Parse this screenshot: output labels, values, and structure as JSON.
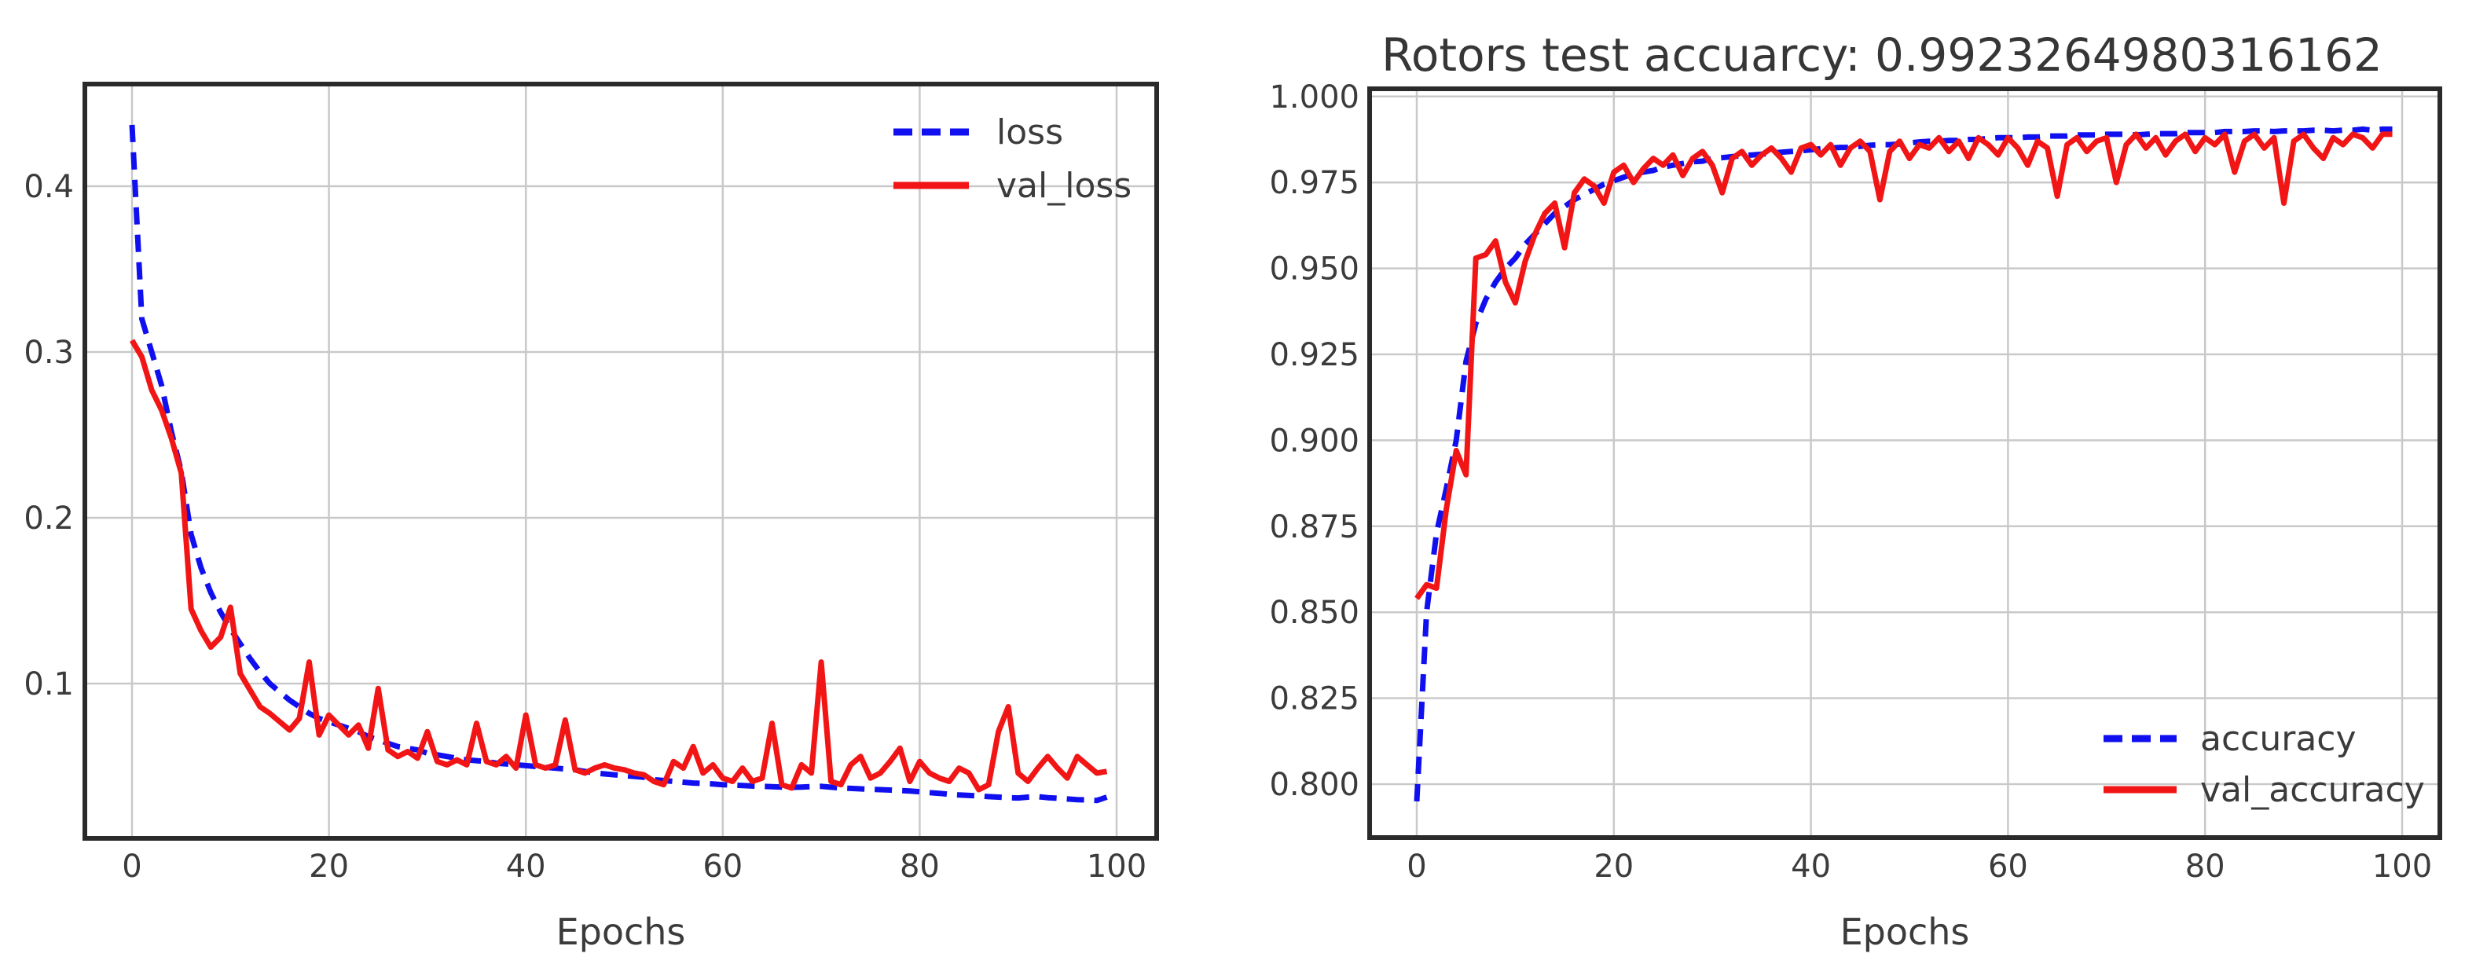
{
  "page": {
    "background": "#ffffff",
    "text_color": "#3b3b3b",
    "grid_color": "#c9c9c9",
    "frame_color": "#2a2a2a"
  },
  "chart_data": [
    {
      "id": "loss",
      "type": "line",
      "title": "",
      "xlabel": "Epochs",
      "ylabel": "",
      "grid": true,
      "legend_position": "upper right",
      "x_start": 0,
      "x_step": 1,
      "xlim": [
        -4.8,
        104.1
      ],
      "ylim": [
        0.007,
        0.462
      ],
      "x_ticks": [
        {
          "v": 0,
          "label": "0"
        },
        {
          "v": 20,
          "label": "20"
        },
        {
          "v": 40,
          "label": "40"
        },
        {
          "v": 60,
          "label": "60"
        },
        {
          "v": 80,
          "label": "80"
        },
        {
          "v": 100,
          "label": "100"
        }
      ],
      "y_ticks": [
        {
          "v": 0.4,
          "label": "0.4"
        },
        {
          "v": 0.3,
          "label": "0.3"
        },
        {
          "v": 0.2,
          "label": "0.2"
        },
        {
          "v": 0.1,
          "label": "0.1"
        }
      ],
      "series": [
        {
          "name": "loss",
          "color": "#0f0fef",
          "style": "dashed",
          "values": [
            0.437,
            0.32,
            0.3,
            0.28,
            0.252,
            0.228,
            0.19,
            0.17,
            0.155,
            0.143,
            0.133,
            0.124,
            0.115,
            0.107,
            0.1,
            0.095,
            0.09,
            0.086,
            0.082,
            0.079,
            0.077,
            0.075,
            0.073,
            0.071,
            0.068,
            0.066,
            0.064,
            0.062,
            0.061,
            0.06,
            0.058,
            0.057,
            0.056,
            0.055,
            0.054,
            0.0535,
            0.053,
            0.052,
            0.0515,
            0.051,
            0.0505,
            0.05,
            0.0495,
            0.049,
            0.0485,
            0.048,
            0.047,
            0.046,
            0.0455,
            0.045,
            0.0445,
            0.044,
            0.0435,
            0.042,
            0.0415,
            0.041,
            0.0405,
            0.04,
            0.0398,
            0.0395,
            0.039,
            0.0388,
            0.0385,
            0.0382,
            0.038,
            0.0378,
            0.0376,
            0.0374,
            0.0376,
            0.0378,
            0.038,
            0.0375,
            0.037,
            0.0368,
            0.0365,
            0.0362,
            0.036,
            0.0358,
            0.0355,
            0.0352,
            0.0348,
            0.0342,
            0.0338,
            0.0332,
            0.0328,
            0.0325,
            0.0322,
            0.0318,
            0.0315,
            0.0312,
            0.031,
            0.0315,
            0.0318,
            0.0312,
            0.0308,
            0.0304,
            0.03,
            0.0298,
            0.0295,
            0.0315
          ]
        },
        {
          "name": "val_loss",
          "color": "#f21515",
          "style": "solid",
          "values": [
            0.307,
            0.297,
            0.277,
            0.265,
            0.248,
            0.227,
            0.145,
            0.132,
            0.122,
            0.128,
            0.146,
            0.106,
            0.096,
            0.086,
            0.082,
            0.077,
            0.072,
            0.079,
            0.113,
            0.069,
            0.081,
            0.075,
            0.069,
            0.075,
            0.061,
            0.097,
            0.06,
            0.056,
            0.059,
            0.055,
            0.071,
            0.053,
            0.051,
            0.054,
            0.051,
            0.076,
            0.053,
            0.051,
            0.056,
            0.049,
            0.081,
            0.051,
            0.049,
            0.051,
            0.078,
            0.048,
            0.046,
            0.049,
            0.051,
            0.049,
            0.048,
            0.046,
            0.045,
            0.041,
            0.039,
            0.053,
            0.049,
            0.062,
            0.046,
            0.051,
            0.043,
            0.041,
            0.049,
            0.041,
            0.043,
            0.076,
            0.039,
            0.037,
            0.051,
            0.046,
            0.113,
            0.041,
            0.039,
            0.051,
            0.056,
            0.043,
            0.046,
            0.053,
            0.061,
            0.041,
            0.053,
            0.046,
            0.043,
            0.041,
            0.049,
            0.046,
            0.036,
            0.039,
            0.071,
            0.086,
            0.046,
            0.041,
            0.049,
            0.056,
            0.049,
            0.043,
            0.056,
            0.051,
            0.046,
            0.047
          ]
        }
      ]
    },
    {
      "id": "accuracy",
      "type": "line",
      "title": "Rotors test accuarcy: 0.9923264980316162",
      "xlabel": "Epochs",
      "ylabel": "",
      "grid": true,
      "legend_position": "lower right",
      "x_start": 0,
      "x_step": 1,
      "xlim": [
        -4.8,
        103.8
      ],
      "ylim": [
        0.785,
        1.002
      ],
      "x_ticks": [
        {
          "v": 0,
          "label": "0"
        },
        {
          "v": 20,
          "label": "20"
        },
        {
          "v": 40,
          "label": "40"
        },
        {
          "v": 60,
          "label": "60"
        },
        {
          "v": 80,
          "label": "80"
        },
        {
          "v": 100,
          "label": "100"
        }
      ],
      "y_ticks": [
        {
          "v": 1.0,
          "label": "1.000"
        },
        {
          "v": 0.975,
          "label": "0.975"
        },
        {
          "v": 0.95,
          "label": "0.950"
        },
        {
          "v": 0.925,
          "label": "0.925"
        },
        {
          "v": 0.9,
          "label": "0.900"
        },
        {
          "v": 0.875,
          "label": "0.875"
        },
        {
          "v": 0.85,
          "label": "0.850"
        },
        {
          "v": 0.825,
          "label": "0.825"
        },
        {
          "v": 0.8,
          "label": "0.800"
        }
      ],
      "series": [
        {
          "name": "accuracy",
          "color": "#0f0fef",
          "style": "dashed",
          "values": [
            0.795,
            0.85,
            0.873,
            0.886,
            0.9,
            0.923,
            0.934,
            0.941,
            0.946,
            0.95,
            0.953,
            0.957,
            0.96,
            0.963,
            0.966,
            0.968,
            0.97,
            0.9715,
            0.973,
            0.9745,
            0.9755,
            0.9765,
            0.9775,
            0.978,
            0.9785,
            0.9795,
            0.98,
            0.9805,
            0.981,
            0.9812,
            0.982,
            0.9822,
            0.9825,
            0.9828,
            0.983,
            0.9832,
            0.9835,
            0.9838,
            0.984,
            0.9842,
            0.9845,
            0.9848,
            0.985,
            0.9852,
            0.9852,
            0.9855,
            0.9858,
            0.986,
            0.986,
            0.9862,
            0.9865,
            0.9868,
            0.987,
            0.987,
            0.9872,
            0.9872,
            0.9875,
            0.9875,
            0.9878,
            0.988,
            0.988,
            0.988,
            0.9882,
            0.9882,
            0.9885,
            0.9885,
            0.9885,
            0.9888,
            0.9888,
            0.9888,
            0.989,
            0.989,
            0.989,
            0.9888,
            0.989,
            0.9892,
            0.9892,
            0.9892,
            0.9895,
            0.9895,
            0.9895,
            0.9895,
            0.9898,
            0.9898,
            0.9898,
            0.99,
            0.99,
            0.9898,
            0.99,
            0.99,
            0.99,
            0.9902,
            0.9902,
            0.99,
            0.9902,
            0.9902,
            0.9905,
            0.9902,
            0.9905,
            0.9905
          ]
        },
        {
          "name": "val_accuracy",
          "color": "#f21515",
          "style": "solid",
          "values": [
            0.854,
            0.858,
            0.857,
            0.88,
            0.897,
            0.89,
            0.953,
            0.954,
            0.958,
            0.946,
            0.94,
            0.952,
            0.96,
            0.966,
            0.969,
            0.956,
            0.972,
            0.976,
            0.974,
            0.969,
            0.978,
            0.98,
            0.975,
            0.979,
            0.982,
            0.98,
            0.983,
            0.977,
            0.982,
            0.984,
            0.98,
            0.972,
            0.982,
            0.984,
            0.98,
            0.983,
            0.985,
            0.982,
            0.978,
            0.985,
            0.986,
            0.983,
            0.986,
            0.98,
            0.985,
            0.987,
            0.984,
            0.97,
            0.984,
            0.987,
            0.982,
            0.986,
            0.985,
            0.988,
            0.984,
            0.987,
            0.982,
            0.988,
            0.986,
            0.983,
            0.988,
            0.985,
            0.98,
            0.987,
            0.985,
            0.971,
            0.986,
            0.988,
            0.984,
            0.987,
            0.988,
            0.975,
            0.986,
            0.989,
            0.985,
            0.988,
            0.983,
            0.987,
            0.989,
            0.984,
            0.988,
            0.986,
            0.989,
            0.978,
            0.987,
            0.989,
            0.985,
            0.988,
            0.969,
            0.987,
            0.989,
            0.985,
            0.982,
            0.988,
            0.986,
            0.989,
            0.988,
            0.985,
            0.989,
            0.989
          ]
        }
      ]
    }
  ]
}
